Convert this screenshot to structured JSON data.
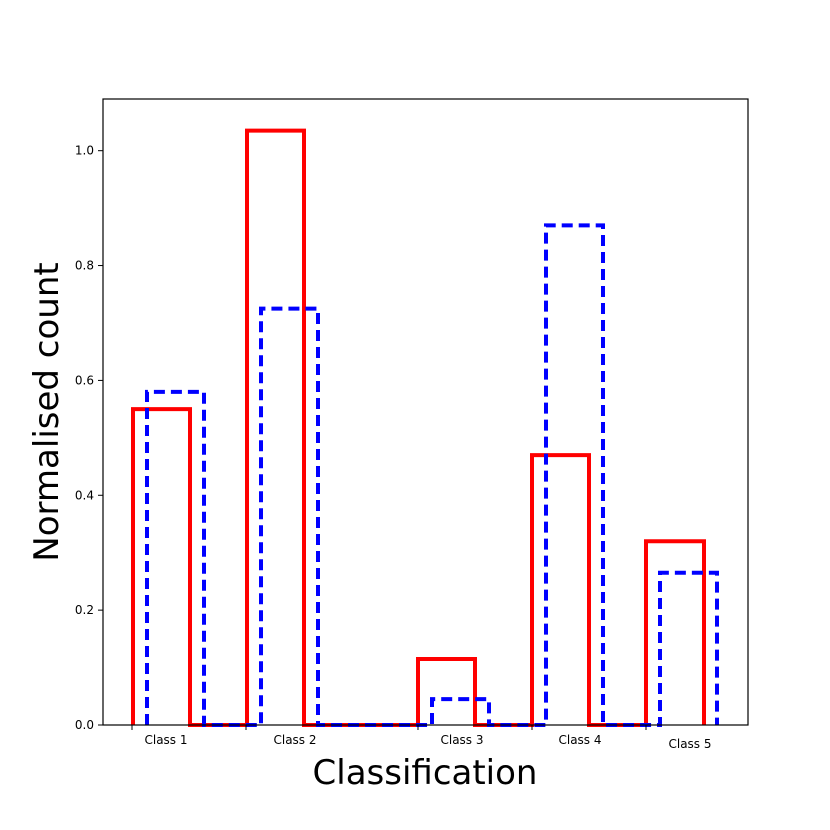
{
  "chart_data": {
    "type": "bar",
    "style": "step-outline",
    "xlabel": "Classification",
    "ylabel": "Normalised count",
    "ylim": [
      0,
      1.09
    ],
    "yticks": [
      "0.0",
      "0.2",
      "0.4",
      "0.6",
      "0.8",
      "1.0"
    ],
    "categories": [
      "Class 1",
      "Class 2",
      "Class 3",
      "Class 4",
      "Class 5"
    ],
    "grid": false,
    "series": [
      {
        "color": "#ff0000",
        "line": "solid",
        "values": [
          0.55,
          1.035,
          0.115,
          0.47,
          0.32
        ]
      },
      {
        "color": "#0000ff",
        "line": "dashed",
        "values": [
          0.58,
          0.725,
          0.045,
          0.87,
          0.265
        ]
      }
    ]
  }
}
